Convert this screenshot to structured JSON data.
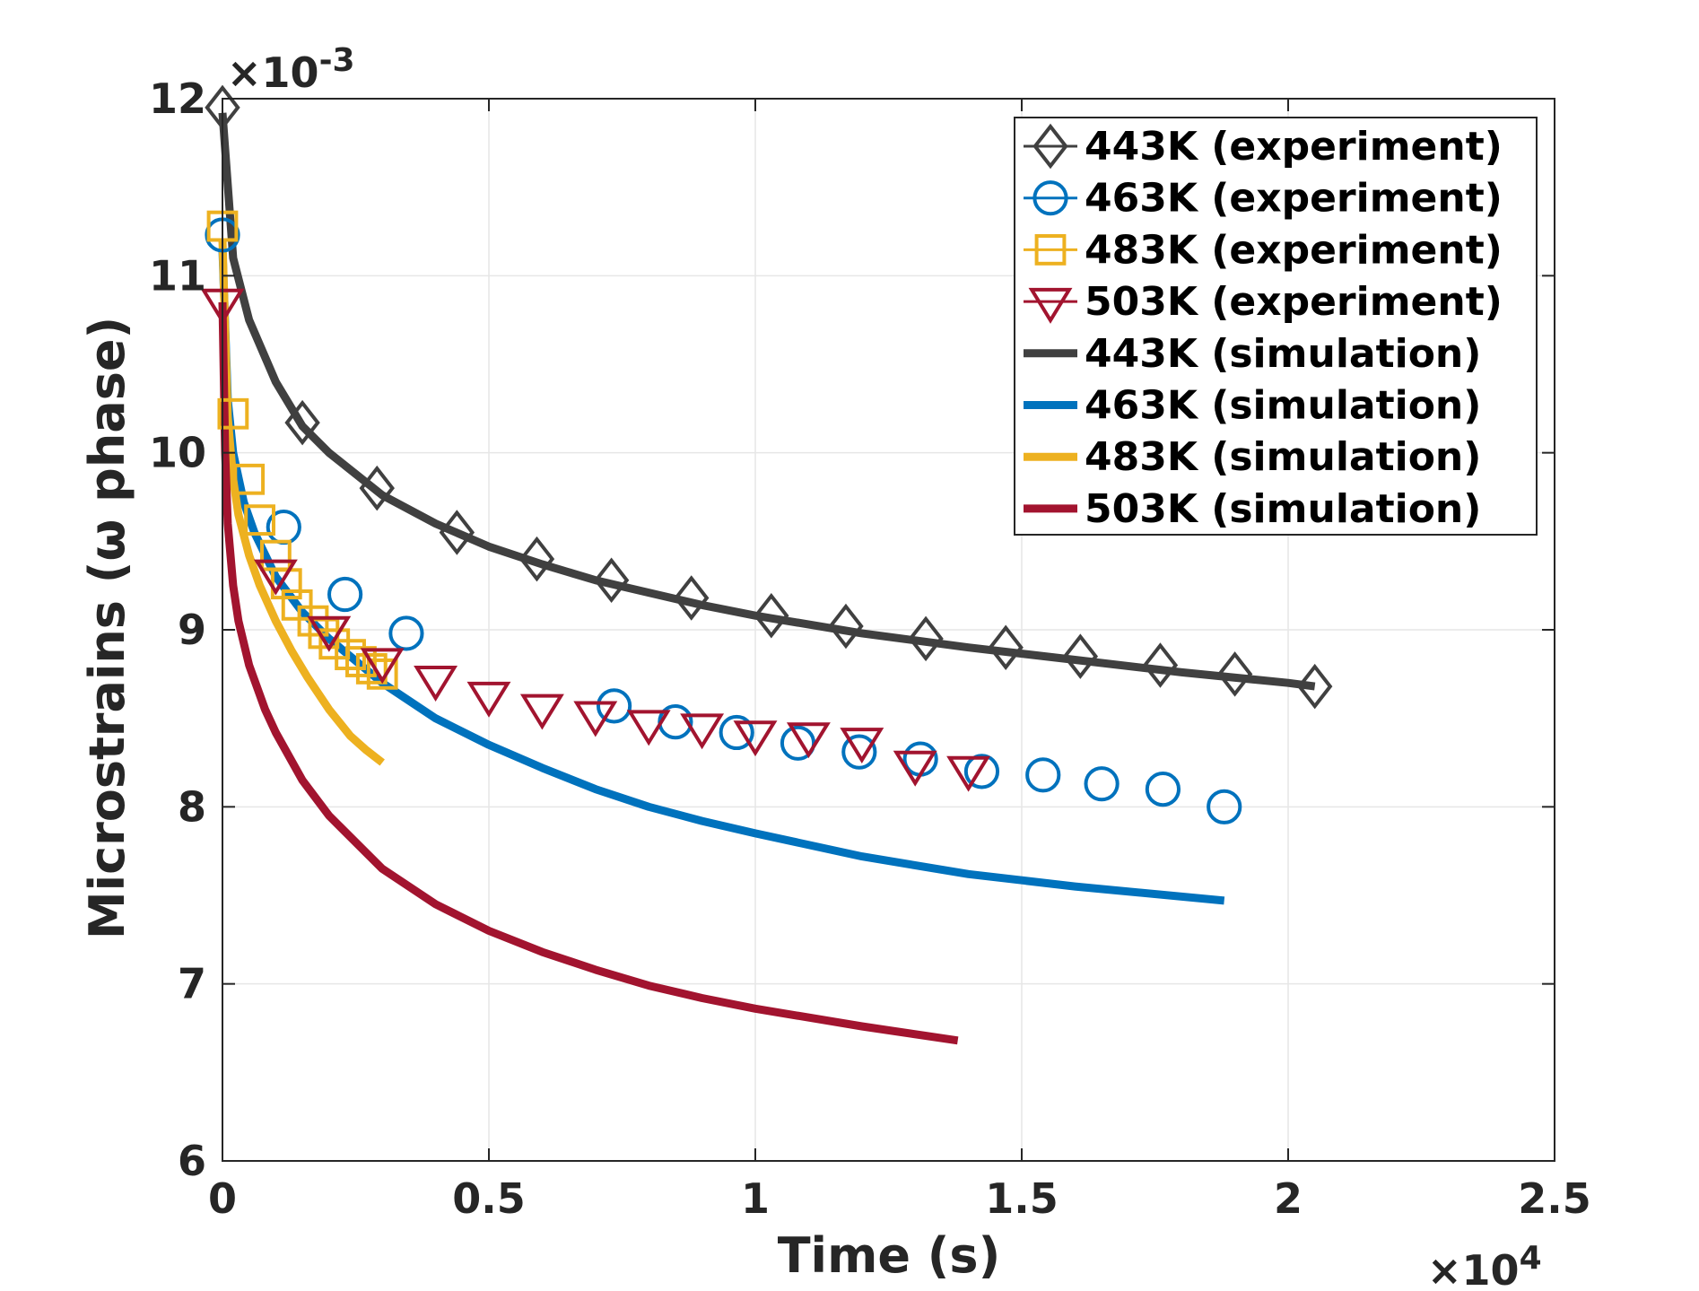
{
  "chart_data": {
    "type": "line",
    "xlabel": "Time (s)",
    "ylabel": "Microstrains (ω phase)",
    "x_exponent_label": "×10",
    "x_exponent_power": "4",
    "y_exponent_label": "×10",
    "y_exponent_power": "-3",
    "xlim": [
      0,
      2.5
    ],
    "ylim": [
      6,
      12
    ],
    "x_ticks": [
      0,
      0.5,
      1,
      1.5,
      2,
      2.5
    ],
    "x_tick_labels": [
      "0",
      "0.5",
      "1",
      "1.5",
      "2",
      "2.5"
    ],
    "y_ticks": [
      6,
      7,
      8,
      9,
      10,
      11,
      12
    ],
    "y_tick_labels": [
      "6",
      "7",
      "8",
      "9",
      "10",
      "11",
      "12"
    ],
    "grid": true,
    "legend_position": "top-right",
    "series": [
      {
        "name": "443K (experiment)",
        "kind": "markers",
        "marker": "diamond",
        "color": "#404040",
        "x": [
          0,
          0.15,
          0.29,
          0.44,
          0.59,
          0.73,
          0.88,
          1.03,
          1.17,
          1.32,
          1.47,
          1.61,
          1.76,
          1.9,
          2.05
        ],
        "y": [
          11.95,
          10.17,
          9.8,
          9.55,
          9.4,
          9.28,
          9.18,
          9.08,
          9.02,
          8.95,
          8.9,
          8.85,
          8.8,
          8.75,
          8.68
        ]
      },
      {
        "name": "463K (experiment)",
        "kind": "markers",
        "marker": "circle",
        "color": "#0072bd",
        "x": [
          0,
          0.115,
          0.23,
          0.345,
          0.735,
          0.85,
          0.965,
          1.08,
          1.195,
          1.31,
          1.425,
          1.54,
          1.65,
          1.765,
          1.88
        ],
        "y": [
          11.23,
          9.58,
          9.2,
          8.98,
          8.57,
          8.48,
          8.42,
          8.36,
          8.31,
          8.27,
          8.2,
          8.18,
          8.13,
          8.1,
          8.0
        ]
      },
      {
        "name": "483K (experiment)",
        "kind": "markers",
        "marker": "square",
        "color": "#edb120",
        "x": [
          0,
          0.02,
          0.05,
          0.07,
          0.1,
          0.12,
          0.14,
          0.17,
          0.19,
          0.21,
          0.24,
          0.26,
          0.28,
          0.3
        ],
        "y": [
          11.28,
          10.22,
          9.85,
          9.62,
          9.42,
          9.26,
          9.14,
          9.05,
          8.98,
          8.92,
          8.86,
          8.82,
          8.78,
          8.75
        ]
      },
      {
        "name": "503K (experiment)",
        "kind": "markers",
        "marker": "triangle-down",
        "color": "#a2142f",
        "x": [
          0,
          0.1,
          0.2,
          0.3,
          0.4,
          0.5,
          0.6,
          0.7,
          0.8,
          0.9,
          1.0,
          1.1,
          1.2,
          1.3,
          1.4
        ],
        "y": [
          10.85,
          9.32,
          9.0,
          8.82,
          8.72,
          8.63,
          8.56,
          8.52,
          8.47,
          8.45,
          8.41,
          8.4,
          8.37,
          8.24,
          8.21
        ]
      },
      {
        "name": "443K (simulation)",
        "kind": "line",
        "color": "#404040",
        "x": [
          0,
          0.02,
          0.05,
          0.1,
          0.15,
          0.2,
          0.3,
          0.4,
          0.5,
          0.6,
          0.7,
          0.8,
          0.9,
          1.0,
          1.2,
          1.4,
          1.6,
          1.8,
          2.0,
          2.05
        ],
        "y": [
          11.92,
          11.1,
          10.75,
          10.4,
          10.15,
          10.0,
          9.76,
          9.6,
          9.47,
          9.37,
          9.28,
          9.21,
          9.14,
          9.08,
          8.98,
          8.9,
          8.83,
          8.76,
          8.7,
          8.68
        ]
      },
      {
        "name": "463K (simulation)",
        "kind": "line",
        "color": "#0072bd",
        "x": [
          0,
          0.01,
          0.02,
          0.04,
          0.06,
          0.1,
          0.15,
          0.2,
          0.3,
          0.4,
          0.5,
          0.6,
          0.7,
          0.8,
          0.9,
          1.0,
          1.2,
          1.4,
          1.6,
          1.88
        ],
        "y": [
          11.15,
          10.3,
          10.0,
          9.72,
          9.55,
          9.3,
          9.1,
          8.95,
          8.7,
          8.5,
          8.35,
          8.22,
          8.1,
          8.0,
          7.92,
          7.85,
          7.72,
          7.62,
          7.55,
          7.47
        ]
      },
      {
        "name": "483K (simulation)",
        "kind": "line",
        "color": "#edb120",
        "x": [
          0,
          0.01,
          0.02,
          0.03,
          0.05,
          0.07,
          0.1,
          0.13,
          0.16,
          0.2,
          0.24,
          0.27,
          0.3
        ],
        "y": [
          11.2,
          10.2,
          9.85,
          9.65,
          9.42,
          9.25,
          9.05,
          8.88,
          8.73,
          8.55,
          8.4,
          8.32,
          8.25
        ]
      },
      {
        "name": "503K (simulation)",
        "kind": "line",
        "color": "#a2142f",
        "x": [
          0,
          0.005,
          0.01,
          0.02,
          0.03,
          0.05,
          0.08,
          0.1,
          0.15,
          0.2,
          0.3,
          0.4,
          0.5,
          0.6,
          0.7,
          0.8,
          0.9,
          1.0,
          1.2,
          1.38
        ],
        "y": [
          10.85,
          10.0,
          9.6,
          9.25,
          9.05,
          8.8,
          8.55,
          8.42,
          8.15,
          7.95,
          7.65,
          7.45,
          7.3,
          7.18,
          7.08,
          6.99,
          6.92,
          6.86,
          6.76,
          6.68
        ]
      }
    ]
  }
}
